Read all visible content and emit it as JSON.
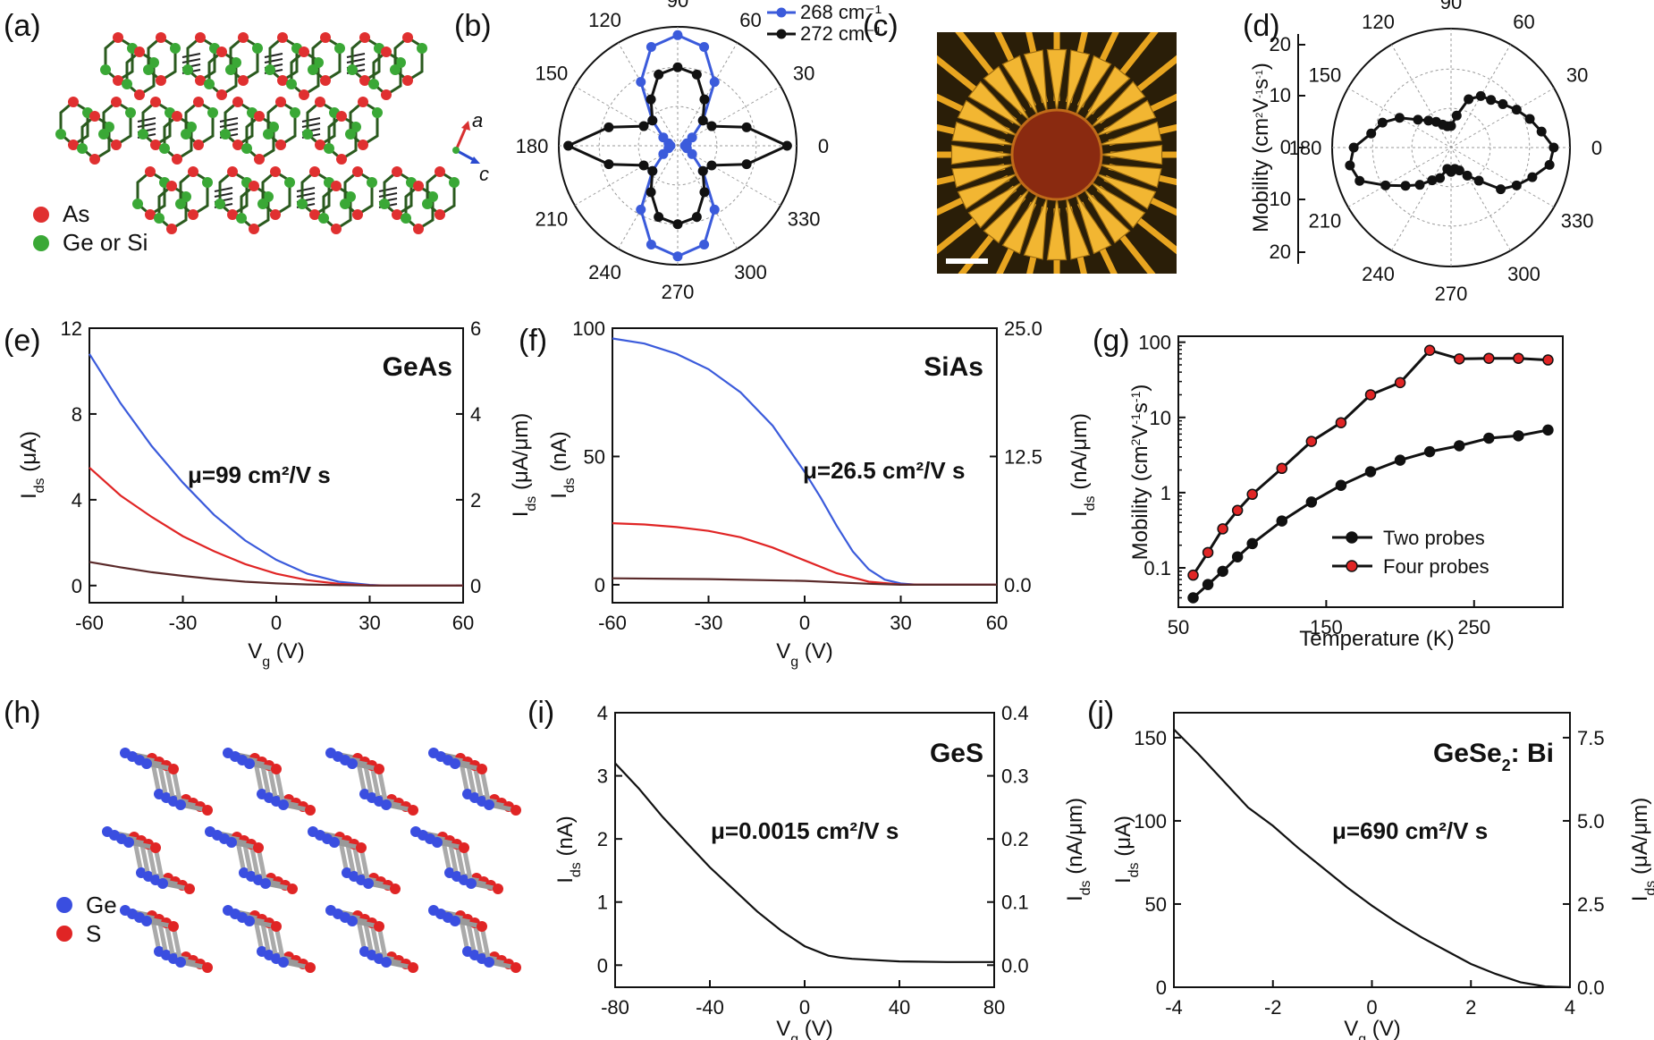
{
  "panels": {
    "a": {
      "label": "(a)",
      "legend": [
        "As",
        "Ge or Si"
      ],
      "axes": [
        "a",
        "c"
      ],
      "colors": {
        "As": "#e03030",
        "Ge": "#3aa836"
      }
    },
    "b": {
      "label": "(b)"
    },
    "c": {
      "label": "(c)"
    },
    "d": {
      "label": "(d)"
    },
    "e": {
      "label": "(e)"
    },
    "f": {
      "label": "(f)"
    },
    "g": {
      "label": "(g)"
    },
    "h": {
      "label": "(h)",
      "legend": [
        "Ge",
        "S"
      ],
      "colors": {
        "Ge": "#3a4ee0",
        "S": "#e02525"
      }
    },
    "i": {
      "label": "(i)"
    },
    "j": {
      "label": "(j)"
    }
  },
  "chart_data": [
    {
      "id": "b",
      "type": "polar",
      "angle_ticks": [
        "0",
        "30",
        "60",
        "90",
        "120",
        "150",
        "180",
        "210",
        "240",
        "270",
        "300",
        "330"
      ],
      "legend": "top-right",
      "series": [
        {
          "name": "268 cm⁻¹",
          "color": "#3b5bdb",
          "angles": [
            0,
            15,
            30,
            45,
            60,
            75,
            90,
            105,
            120,
            135,
            150,
            165,
            180,
            195,
            210,
            225,
            240,
            255,
            270,
            285,
            300,
            315,
            330,
            345
          ],
          "values": [
            0.06,
            0.08,
            0.14,
            0.3,
            0.62,
            0.86,
            0.93,
            0.86,
            0.62,
            0.3,
            0.14,
            0.08,
            0.06,
            0.08,
            0.14,
            0.3,
            0.62,
            0.86,
            0.93,
            0.86,
            0.62,
            0.3,
            0.14,
            0.08
          ]
        },
        {
          "name": "272 cm⁻¹",
          "color": "#111111",
          "angles": [
            0,
            15,
            30,
            45,
            60,
            75,
            90,
            105,
            120,
            135,
            150,
            165,
            180,
            195,
            210,
            225,
            240,
            255,
            270,
            285,
            300,
            315,
            330,
            345
          ],
          "values": [
            0.92,
            0.6,
            0.33,
            0.3,
            0.45,
            0.62,
            0.66,
            0.62,
            0.45,
            0.3,
            0.33,
            0.6,
            0.92,
            0.6,
            0.33,
            0.3,
            0.45,
            0.62,
            0.66,
            0.62,
            0.45,
            0.3,
            0.33,
            0.6
          ]
        }
      ]
    },
    {
      "id": "d",
      "type": "polar",
      "angle_ticks": [
        "0",
        "30",
        "60",
        "90",
        "120",
        "150",
        "180",
        "210",
        "240",
        "270",
        "300",
        "330"
      ],
      "radial_ticks": [
        "0",
        "10",
        "20"
      ],
      "ylabel_parts": [
        "Mobility (cm",
        "2",
        "V",
        "-1",
        "s",
        "-1",
        ")"
      ],
      "rlim": [
        0,
        22
      ],
      "series": [
        {
          "name": "mobility",
          "color": "#111111",
          "angles": [
            0,
            10,
            20,
            30,
            40,
            50,
            60,
            70,
            80,
            90,
            100,
            110,
            120,
            130,
            140,
            150,
            160,
            170,
            180,
            190,
            200,
            210,
            220,
            230,
            240,
            250,
            260,
            270,
            280,
            290,
            300,
            310,
            320,
            330,
            340,
            350
          ],
          "values": [
            19,
            17,
            15.5,
            14,
            12.5,
            11.5,
            11,
            9.5,
            6,
            4,
            4,
            4.5,
            5.5,
            6.5,
            8,
            11,
            13.5,
            15,
            18,
            19,
            18,
            14,
            11,
            9,
            7,
            6,
            4,
            4.5,
            4,
            4.5,
            6,
            8,
            12,
            14,
            16,
            18.5
          ]
        }
      ]
    },
    {
      "id": "e",
      "type": "line",
      "title": "GeAs",
      "annotation": "μ=99 cm²/V s",
      "xlabel": "V",
      "xlabel_sub": "g",
      "xlabel_unit": " (V)",
      "ylabel": "I",
      "ylabel_sub": "ds",
      "ylabel_unit": " (μA)",
      "y2label": "I",
      "y2label_sub": "ds",
      "y2label_unit": " (μA/μm)",
      "xlim": [
        -60,
        60
      ],
      "ylim": [
        -0.8,
        12
      ],
      "y2lim": [
        -0.4,
        6
      ],
      "xticks": [
        -60,
        -30,
        0,
        30,
        60
      ],
      "yticks": [
        0,
        4,
        8,
        12
      ],
      "y2ticks": [
        0,
        2,
        4,
        6
      ],
      "series": [
        {
          "color": "#3b5bdb",
          "x": [
            -60,
            -50,
            -40,
            -30,
            -20,
            -10,
            0,
            10,
            20,
            30,
            35,
            40,
            50,
            60
          ],
          "y": [
            10.8,
            8.5,
            6.5,
            4.8,
            3.3,
            2.1,
            1.2,
            0.55,
            0.18,
            0.03,
            0,
            0,
            0,
            0
          ]
        },
        {
          "color": "#e02525",
          "x": [
            -60,
            -50,
            -40,
            -30,
            -20,
            -10,
            0,
            10,
            20,
            30,
            35,
            40,
            60
          ],
          "y": [
            5.5,
            4.2,
            3.2,
            2.3,
            1.6,
            1.0,
            0.55,
            0.25,
            0.08,
            0.01,
            0,
            0,
            0
          ]
        },
        {
          "color": "#5a2a2a",
          "x": [
            -60,
            -50,
            -40,
            -30,
            -20,
            -10,
            0,
            10,
            20,
            30,
            40,
            60
          ],
          "y": [
            1.1,
            0.85,
            0.62,
            0.45,
            0.3,
            0.18,
            0.1,
            0.05,
            0.02,
            0,
            0,
            0
          ]
        }
      ]
    },
    {
      "id": "f",
      "type": "line",
      "title": "SiAs",
      "annotation": "μ=26.5 cm²/V s",
      "xlabel": "V",
      "xlabel_sub": "g",
      "xlabel_unit": " (V)",
      "ylabel": "I",
      "ylabel_sub": "ds",
      "ylabel_unit": " (nA)",
      "y2label": "I",
      "y2label_sub": "ds",
      "y2label_unit": " (nA/μm)",
      "xlim": [
        -60,
        60
      ],
      "ylim": [
        -7,
        100
      ],
      "y2lim": [
        -1.75,
        25
      ],
      "xticks": [
        -60,
        -30,
        0,
        30,
        60
      ],
      "yticks": [
        0,
        50,
        100
      ],
      "y2ticks": [
        "0.0",
        "12.5",
        "25.0"
      ],
      "y2tickvals": [
        0,
        12.5,
        25
      ],
      "series": [
        {
          "color": "#3b5bdb",
          "x": [
            -60,
            -50,
            -40,
            -30,
            -20,
            -10,
            0,
            5,
            10,
            15,
            20,
            25,
            30,
            35,
            40,
            60
          ],
          "y": [
            96,
            94,
            90,
            84,
            75,
            62,
            44,
            34,
            23,
            13,
            6,
            2,
            0.5,
            0,
            0,
            0
          ]
        },
        {
          "color": "#e02525",
          "x": [
            -60,
            -50,
            -40,
            -30,
            -20,
            -10,
            0,
            10,
            20,
            30,
            40,
            60
          ],
          "y": [
            24,
            23.5,
            22.5,
            21,
            18.5,
            14.5,
            9.5,
            4.5,
            1.2,
            0.1,
            0,
            0
          ]
        },
        {
          "color": "#5a2a2a",
          "x": [
            -60,
            -30,
            0,
            20,
            30,
            60
          ],
          "y": [
            2.5,
            2.2,
            1.5,
            0.4,
            0,
            0
          ]
        }
      ]
    },
    {
      "id": "g",
      "type": "line",
      "yscale": "log",
      "xlabel": "Temperature (K)",
      "ylabel_parts": [
        "Mobility (cm",
        "2",
        "V",
        "-1",
        "s",
        "-1",
        ")"
      ],
      "xlim": [
        50,
        310
      ],
      "ylim": [
        0.03,
        120
      ],
      "xticks": [
        50,
        150,
        250
      ],
      "yticks": [
        0.1,
        1,
        10,
        100
      ],
      "yticklabels": [
        "0.1",
        "1",
        "10",
        "100"
      ],
      "legend": "bottom-right",
      "series": [
        {
          "name": "Two probes",
          "color": "#111111",
          "marker": "#111111",
          "x": [
            60,
            70,
            80,
            90,
            100,
            120,
            140,
            160,
            180,
            200,
            220,
            240,
            260,
            280,
            300
          ],
          "y": [
            0.04,
            0.06,
            0.09,
            0.14,
            0.21,
            0.42,
            0.75,
            1.25,
            1.9,
            2.7,
            3.5,
            4.2,
            5.3,
            5.7,
            6.8
          ]
        },
        {
          "name": "Four probes",
          "color": "#111111",
          "marker": "#e02525",
          "x": [
            60,
            70,
            80,
            90,
            100,
            120,
            140,
            160,
            180,
            200,
            220,
            240,
            260,
            280,
            300
          ],
          "y": [
            0.08,
            0.16,
            0.33,
            0.58,
            0.95,
            2.1,
            4.8,
            8.5,
            20,
            29,
            78,
            60,
            61,
            61,
            58
          ]
        }
      ]
    },
    {
      "id": "i",
      "type": "line",
      "title": "GeS",
      "annotation": "μ=0.0015 cm²/V s",
      "xlabel": "V",
      "xlabel_sub": "g",
      "xlabel_unit": " (V)",
      "ylabel": "I",
      "ylabel_sub": "ds",
      "ylabel_unit": " (nA)",
      "y2label": "I",
      "y2label_sub": "ds",
      "y2label_unit": " (nA/μm)",
      "xlim": [
        -80,
        80
      ],
      "ylim": [
        -0.35,
        4
      ],
      "y2lim": [
        -0.035,
        0.4
      ],
      "xticks": [
        -80,
        -40,
        0,
        40,
        80
      ],
      "yticks": [
        0,
        1,
        2,
        3,
        4
      ],
      "y2ticks": [
        "0.0",
        "0.1",
        "0.2",
        "0.3",
        "0.4"
      ],
      "y2tickvals": [
        0,
        0.1,
        0.2,
        0.3,
        0.4
      ],
      "series": [
        {
          "color": "#111111",
          "x": [
            -80,
            -70,
            -60,
            -50,
            -40,
            -30,
            -20,
            -10,
            0,
            10,
            15,
            20,
            30,
            40,
            60,
            80
          ],
          "y": [
            3.2,
            2.8,
            2.35,
            1.95,
            1.55,
            1.2,
            0.85,
            0.55,
            0.3,
            0.15,
            0.12,
            0.1,
            0.08,
            0.06,
            0.05,
            0.05
          ]
        }
      ]
    },
    {
      "id": "j",
      "type": "line",
      "title_parts": [
        "GeSe",
        "2",
        ": Bi"
      ],
      "annotation": "μ=690 cm²/V s",
      "xlabel": "V",
      "xlabel_sub": "g",
      "xlabel_unit": " (V)",
      "ylabel": "I",
      "ylabel_sub": "ds",
      "ylabel_unit": " (μA)",
      "y2label": "I",
      "y2label_sub": "ds",
      "y2label_unit": " (μA/μm)",
      "xlim": [
        -4,
        4
      ],
      "ylim": [
        0,
        165
      ],
      "y2lim": [
        0,
        8.25
      ],
      "xticks": [
        -4,
        -2,
        0,
        2,
        4
      ],
      "yticks": [
        0,
        50,
        100,
        150
      ],
      "y2ticks": [
        "0.0",
        "2.5",
        "5.0",
        "7.5"
      ],
      "y2tickvals": [
        0,
        2.5,
        5,
        7.5
      ],
      "series": [
        {
          "color": "#111111",
          "x": [
            -4,
            -3.5,
            -3,
            -2.5,
            -2,
            -1.5,
            -1,
            -0.5,
            0,
            0.5,
            1,
            1.5,
            2,
            2.5,
            3,
            3.5,
            4
          ],
          "y": [
            155,
            140,
            124,
            108,
            97,
            84,
            72,
            60,
            49,
            39,
            30,
            22,
            14,
            8,
            3,
            0.5,
            0
          ]
        }
      ]
    }
  ]
}
